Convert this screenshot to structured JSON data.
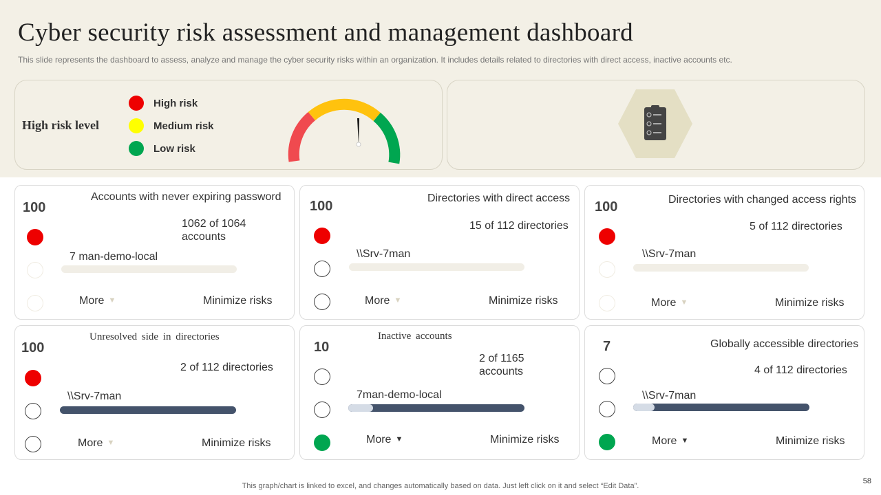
{
  "header": {
    "title": "Cyber security risk assessment and management dashboard",
    "subtitle": "This slide represents the dashboard to assess, analyze and manage the cyber security risks within an organization. It includes details related to directories with direct access, inactive accounts etc."
  },
  "risk_panel": {
    "level_label": "High risk level",
    "legend": [
      {
        "label": "High risk",
        "color": "#ee0000"
      },
      {
        "label": "Medium risk",
        "color": "#ffff00"
      },
      {
        "label": "Low risk",
        "color": "#00a650"
      }
    ],
    "gauge": {
      "segments": [
        "#f04a4f",
        "#ffc20e",
        "#00a650"
      ],
      "needle_level": 0.5
    }
  },
  "icon_panel": {
    "icon": "clipboard-list-icon",
    "hex_color": "#e4dfc4"
  },
  "cards": [
    {
      "score": "100",
      "title": "Accounts with never expiring password",
      "count": "1062 of 1064 accounts",
      "server": "7 man-demo-local",
      "bar_fill": 0,
      "more": "More",
      "minimize": "Minimize risks",
      "dots": [
        "red",
        "faint",
        "faint"
      ]
    },
    {
      "score": "100",
      "title": "Directories with direct access",
      "count": "15 of 112 directories",
      "server": "\\\\Srv-7man",
      "bar_fill": 0,
      "more": "More",
      "minimize": "Minimize risks",
      "dots": [
        "red",
        "hollow",
        "hollow"
      ]
    },
    {
      "score": "100",
      "title": "Directories with changed access rights",
      "count": "5 of 112 directories",
      "server": "\\\\Srv-7man",
      "bar_fill": 0,
      "more": "More",
      "minimize": "Minimize risks",
      "dots": [
        "red",
        "faint",
        "faint"
      ]
    },
    {
      "score": "100",
      "title": "Unresolved side in directories",
      "count": "2 of 112 directories",
      "server": "\\\\Srv-7man",
      "bar_fill": 0,
      "more": "More",
      "minimize": "Minimize risks",
      "dots": [
        "red",
        "hollow",
        "hollow"
      ]
    },
    {
      "score": "10",
      "title": "Inactive accounts",
      "count": "2 of 1165 accounts",
      "server": "7man-demo-local",
      "bar_fill": 0.14,
      "more": "More",
      "minimize": "Minimize risks",
      "dots": [
        "hollow",
        "hollow",
        "green"
      ]
    },
    {
      "score": "7",
      "title": "Globally accessible directories",
      "count": "4 of 112 directories",
      "server": "\\\\Srv-7man",
      "bar_fill": 0.12,
      "more": "More",
      "minimize": "Minimize risks",
      "dots": [
        "hollow",
        "hollow",
        "green"
      ]
    }
  ],
  "footer": {
    "note": "This graph/chart is linked to excel,  and changes automatically based on data. Just left click on it and select “Edit Data”.",
    "page_number": "58"
  }
}
